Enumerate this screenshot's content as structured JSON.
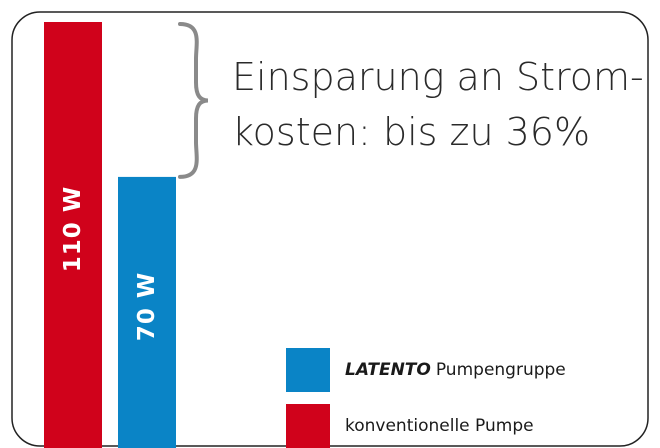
{
  "chart_data": {
    "type": "bar",
    "annotation": [
      "Einsparung an Strom-",
      "kosten: bis zu 36%"
    ],
    "series": [
      {
        "name": [
          "konventionelle Pumpe"
        ],
        "color": "#d0021b",
        "values": [
          110
        ],
        "value_labels": [
          "110 W"
        ]
      },
      {
        "name": [
          "LATENTO",
          "Pumpengruppe"
        ],
        "color": "#0a84c6",
        "values": [
          70
        ],
        "value_labels": [
          "70 W"
        ]
      }
    ]
  }
}
